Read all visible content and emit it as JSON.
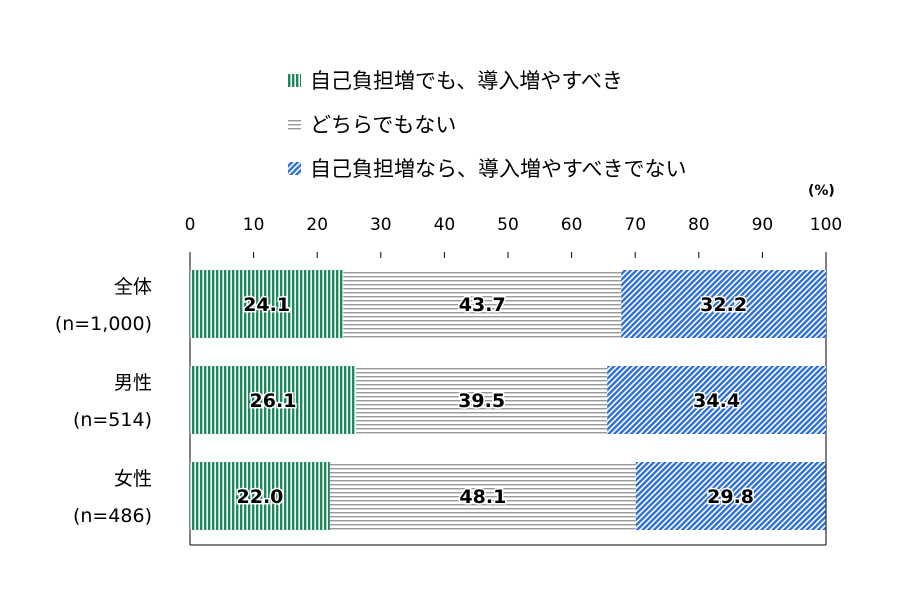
{
  "chart_data": {
    "type": "bar",
    "orientation": "horizontal",
    "stacked": true,
    "unit_label": "(%)",
    "xlim": [
      0,
      100
    ],
    "x_ticks": [
      "0",
      "10",
      "20",
      "30",
      "40",
      "50",
      "60",
      "70",
      "80",
      "90",
      "100"
    ],
    "categories": [
      {
        "label": "全体",
        "n": "(n=1,000)"
      },
      {
        "label": "男性",
        "n": "(n=514)"
      },
      {
        "label": "女性",
        "n": "(n=486)"
      }
    ],
    "series": [
      {
        "name": "自己負担増でも、導入増やすべき",
        "values": [
          24.1,
          26.1,
          22.0
        ],
        "labels": [
          "24.1",
          "26.1",
          "22.0"
        ],
        "color": "#1a8a5a",
        "pattern": "vertical-lines"
      },
      {
        "name": "どちらでもない",
        "values": [
          43.7,
          39.5,
          48.1
        ],
        "labels": [
          "43.7",
          "39.5",
          "48.1"
        ],
        "color": "#999999",
        "pattern": "horizontal-lines"
      },
      {
        "name": "自己負担増なら、導入増やすべきでない",
        "values": [
          32.2,
          34.4,
          29.8
        ],
        "labels": [
          "32.2",
          "34.4",
          "29.8"
        ],
        "color": "#2e6fd6",
        "pattern": "diagonal-lines"
      }
    ],
    "legend_position": "top",
    "grid": false
  }
}
